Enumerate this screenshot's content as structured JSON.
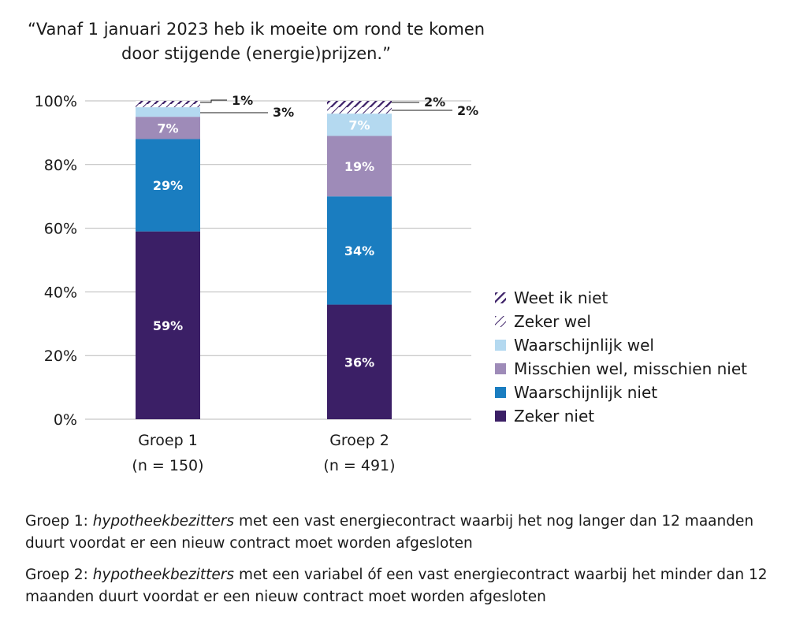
{
  "chart_data": {
    "type": "bar",
    "stacked": true,
    "title": "“Vanaf 1 januari 2023 heb ik moeite om rond te komen door stijgende (energie)prijzen.”",
    "categories": [
      "Groep 1",
      "Groep 2"
    ],
    "category_sublabels": [
      "(n = 150)",
      "(n = 491)"
    ],
    "ylim": [
      0,
      100
    ],
    "yticks": [
      "0%",
      "20%",
      "40%",
      "60%",
      "80%",
      "100%"
    ],
    "grid": true,
    "legend_position": "right",
    "series": [
      {
        "name": "Zeker niet",
        "values": [
          59,
          36
        ],
        "labels": [
          "59%",
          "36%"
        ],
        "color": "#3b1f66",
        "pattern": "solid"
      },
      {
        "name": "Waarschijnlijk niet",
        "values": [
          29,
          34
        ],
        "labels": [
          "29%",
          "34%"
        ],
        "color": "#1a7dc0",
        "pattern": "solid"
      },
      {
        "name": "Misschien wel, misschien niet",
        "values": [
          7,
          19
        ],
        "labels": [
          "7%",
          "19%"
        ],
        "color": "#9e8bb8",
        "pattern": "solid"
      },
      {
        "name": "Waarschijnlijk wel",
        "values": [
          3,
          7
        ],
        "labels": [
          "3%",
          "7%"
        ],
        "color": "#b4d9f0",
        "pattern": "solid"
      },
      {
        "name": "Zeker wel",
        "values": [
          1,
          2
        ],
        "labels": [
          "",
          "2%"
        ],
        "color": "#3b1f66",
        "pattern": "light-hatch"
      },
      {
        "name": "Weet ik niet",
        "values": [
          1,
          2
        ],
        "labels": [
          "1%",
          "2%"
        ],
        "color": "#3b1f66",
        "pattern": "heavy-hatch"
      }
    ]
  },
  "notes": {
    "groep1_prefix": "Groep 1: ",
    "groep1_italic": "hypotheekbezitters",
    "groep1_rest": " met een vast energiecontract waarbij het nog langer dan 12 maanden duurt voordat er een nieuw contract moet worden afgesloten",
    "groep2_prefix": "Groep 2: ",
    "groep2_italic": "hypotheekbezitters",
    "groep2_rest": " met een variabel óf een vast energiecontract waarbij het minder dan 12 maanden duurt voordat er een nieuw contract moet worden afgesloten"
  }
}
